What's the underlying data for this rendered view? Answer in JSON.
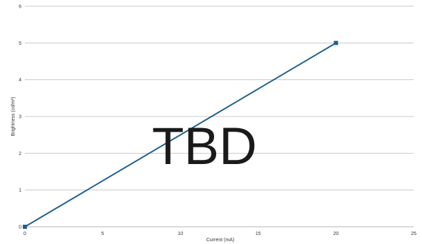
{
  "chart_data": {
    "type": "line",
    "title": "",
    "xlabel": "Current (mA)",
    "ylabel": "Brightness (cd/m²)",
    "xlim": [
      0,
      25
    ],
    "ylim": [
      0,
      6
    ],
    "x_ticks": [
      "0",
      "5",
      "10",
      "15",
      "20",
      "25"
    ],
    "y_ticks": [
      "0",
      "1",
      "2",
      "3",
      "4",
      "5",
      "6"
    ],
    "grid": "horizontal",
    "legend": "none",
    "series": [
      {
        "x": [
          0,
          20
        ],
        "y": [
          0,
          5
        ],
        "color": "#1f5f8b",
        "marker": "square"
      }
    ],
    "annotation": "TBD"
  }
}
